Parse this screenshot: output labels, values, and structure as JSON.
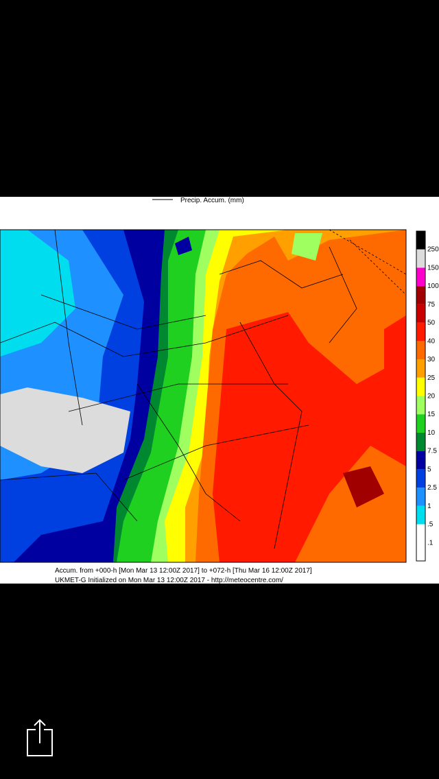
{
  "viewer": {
    "legend_title": "Precip. Accum. (mm)",
    "color_scale": [
      {
        "label": "250",
        "color": "#000000"
      },
      {
        "label": "150",
        "color": "#dcdcdc"
      },
      {
        "label": "100",
        "color": "#ff00cc"
      },
      {
        "label": "75",
        "color": "#a00000"
      },
      {
        "label": "50",
        "color": "#c80000"
      },
      {
        "label": "40",
        "color": "#ff1a00"
      },
      {
        "label": "30",
        "color": "#ff6a00"
      },
      {
        "label": "25",
        "color": "#ffa000"
      },
      {
        "label": "20",
        "color": "#ffff00"
      },
      {
        "label": "15",
        "color": "#a0ff60"
      },
      {
        "label": "10",
        "color": "#20d020"
      },
      {
        "label": "7.5",
        "color": "#008830"
      },
      {
        "label": "5",
        "color": "#0000a0"
      },
      {
        "label": "2.5",
        "color": "#0040e0"
      },
      {
        "label": "1",
        "color": "#1e90ff"
      },
      {
        "label": ".5",
        "color": "#00ddee"
      },
      {
        "label": ".1",
        "color": "#ffffff"
      }
    ],
    "footer_line_1": "Accum. from +000-h [Mon Mar 13 12:00Z 2017] to +072-h [Thu Mar 16 12:00Z 2017]",
    "footer_line_2": "UKMET-G Initialized on Mon Mar 13 12:00Z 2017 - http://meteocentre.com/"
  }
}
